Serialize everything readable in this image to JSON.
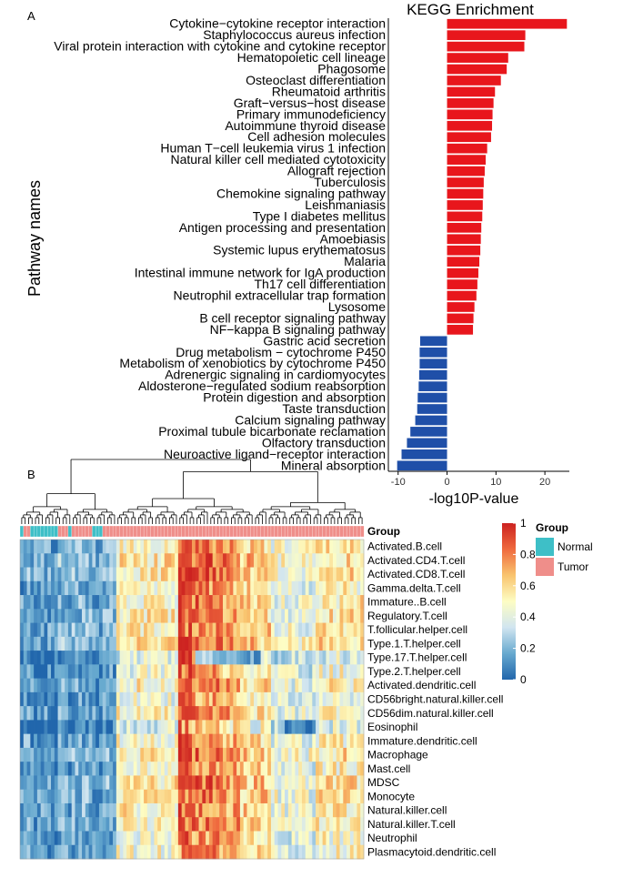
{
  "panel_labels": {
    "a": "A",
    "b": "B"
  },
  "chart_data": [
    {
      "type": "bar",
      "orientation": "horizontal",
      "title": "KEGG Enrichment",
      "xlabel": "-log10P-value",
      "ylabel": "Pathway names",
      "xlim": [
        -12,
        25
      ],
      "xticks": [
        -10,
        0,
        10,
        20
      ],
      "grid": false,
      "colors": {
        "positive": "#e8161c",
        "negative": "#1f4fa8"
      },
      "categories": [
        "Cytokine−cytokine receptor interaction",
        "Staphylococcus aureus infection",
        "Viral protein interaction with cytokine and cytokine receptor",
        "Hematopoietic cell lineage",
        "Phagosome",
        "Osteoclast differentiation",
        "Rheumatoid arthritis",
        "Graft−versus−host disease",
        "Primary immunodeficiency",
        "Autoimmune thyroid disease",
        "Cell adhesion molecules",
        "Human T−cell leukemia virus 1 infection",
        "Natural killer cell mediated cytotoxicity",
        "Allograft rejection",
        "Tuberculosis",
        "Chemokine signaling pathway",
        "Leishmaniasis",
        "Type I diabetes mellitus",
        "Antigen processing and presentation",
        "Amoebiasis",
        "Systemic lupus erythematosus",
        "Malaria",
        "Intestinal immune network for IgA production",
        "Th17 cell differentiation",
        "Neutrophil extracellular trap formation",
        "Lysosome",
        "B cell receptor signaling pathway",
        "NF−kappa B signaling pathway",
        "Gastric acid secretion",
        "Drug metabolism − cytochrome P450",
        "Metabolism of xenobiotics by cytochrome P450",
        "Adrenergic signaling in cardiomyocytes",
        "Aldosterone−regulated sodium reabsorption",
        "Protein digestion and absorption",
        "Taste transduction",
        "Calcium signaling pathway",
        "Proximal tubule bicarbonate reclamation",
        "Olfactory transduction",
        "Neuroactive ligand−receptor interaction",
        "Mineral absorption"
      ],
      "values": [
        24.5,
        16.0,
        15.8,
        12.5,
        12.2,
        11.0,
        9.8,
        9.5,
        9.3,
        9.2,
        9.0,
        8.2,
        7.9,
        7.7,
        7.5,
        7.4,
        7.3,
        7.2,
        7.0,
        6.9,
        6.8,
        6.6,
        6.4,
        6.2,
        6.0,
        5.6,
        5.4,
        5.3,
        -5.5,
        -5.6,
        -5.6,
        -5.7,
        -5.8,
        -6.0,
        -6.1,
        -6.5,
        -7.5,
        -8.2,
        -9.3,
        -10.2
      ]
    },
    {
      "type": "heatmap",
      "rows": [
        "Activated.B.cell",
        "Activated.CD4.T.cell",
        "Activated.CD8.T.cell",
        "Gamma.delta.T.cell",
        "Immature..B.cell",
        "Regulatory.T.cell",
        "T.follicular.helper.cell",
        "Type.1.T.helper.cell",
        "Type.17.T.helper.cell",
        "Type.2.T.helper.cell",
        "Activated.dendritic.cell",
        "CD56bright.natural.killer.cell",
        "CD56dim.natural.killer.cell",
        "Eosinophil",
        "Immature.dendritic.cell",
        "Macrophage",
        "Mast.cell",
        "MDSC",
        "Monocyte",
        "Natural.killer.cell",
        "Natural.killer.T.cell",
        "Neutrophil",
        "Plasmacytoid.dendritic.cell"
      ],
      "column_count": 100,
      "value_range": [
        0,
        1
      ],
      "colorbar_ticks": [
        0,
        0.2,
        0.4,
        0.6,
        0.8,
        1
      ],
      "colorbar_colors": [
        "#2166ac",
        "#67a9cf",
        "#d1e5f0",
        "#fdfdc4",
        "#f9c46e",
        "#ef6a3e",
        "#cc2220"
      ],
      "annotation": {
        "title": "Group",
        "legend_title": "Group",
        "levels": [
          {
            "name": "Normal",
            "color": "#3ebfc7"
          },
          {
            "name": "Tumor",
            "color": "#ef8e8a"
          }
        ],
        "normal_columns": [
          0,
          3,
          4,
          5,
          6,
          7,
          8,
          9,
          10,
          14,
          21,
          22,
          23
        ]
      },
      "dendrogram": "hierarchical clustering of columns"
    }
  ]
}
